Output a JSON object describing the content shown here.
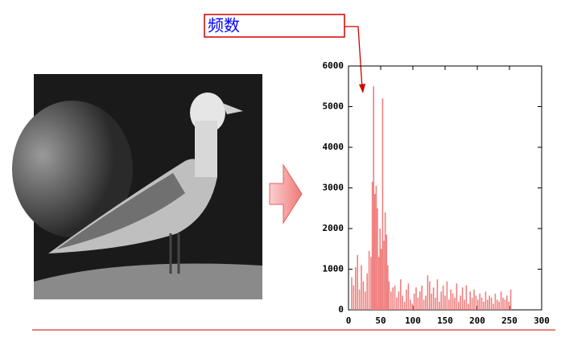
{
  "chart_data": {
    "type": "bar",
    "annotation": "频数",
    "color": "#f08080",
    "x": [
      5,
      8,
      11,
      14,
      17,
      20,
      23,
      26,
      29,
      32,
      35,
      37,
      39,
      41,
      43,
      45,
      47,
      49,
      51,
      53,
      55,
      57,
      59,
      61,
      63,
      66,
      69,
      72,
      75,
      78,
      81,
      84,
      87,
      90,
      93,
      96,
      99,
      102,
      105,
      108,
      111,
      114,
      117,
      120,
      123,
      126,
      129,
      132,
      135,
      138,
      141,
      144,
      147,
      150,
      153,
      156,
      159,
      162,
      165,
      168,
      171,
      174,
      177,
      180,
      183,
      186,
      189,
      192,
      195,
      198,
      201,
      204,
      207,
      210,
      213,
      216,
      219,
      222,
      225,
      228,
      231,
      234,
      237,
      240,
      243,
      246,
      249,
      252
    ],
    "values": [
      800,
      600,
      1050,
      1350,
      500,
      1100,
      700,
      450,
      900,
      1450,
      1300,
      3150,
      5500,
      2850,
      3050,
      2500,
      1300,
      2000,
      1500,
      5200,
      1700,
      2400,
      1850,
      1100,
      700,
      450,
      550,
      600,
      300,
      450,
      750,
      350,
      200,
      500,
      650,
      250,
      150,
      400,
      550,
      300,
      450,
      600,
      250,
      350,
      850,
      700,
      400,
      550,
      300,
      750,
      200,
      450,
      600,
      350,
      700,
      250,
      500,
      400,
      300,
      650,
      200,
      350,
      550,
      250,
      600,
      150,
      450,
      300,
      500,
      350,
      250,
      400,
      300,
      200,
      450,
      250,
      350,
      300,
      150,
      400,
      250,
      200,
      450,
      300,
      250,
      350,
      200,
      500
    ],
    "xlim": [
      0,
      300
    ],
    "xticks": [
      0,
      50,
      100,
      150,
      200,
      250,
      300
    ],
    "ylim": [
      0,
      6000
    ],
    "yticks": [
      0,
      1000,
      2000,
      3000,
      4000,
      5000,
      6000
    ]
  }
}
